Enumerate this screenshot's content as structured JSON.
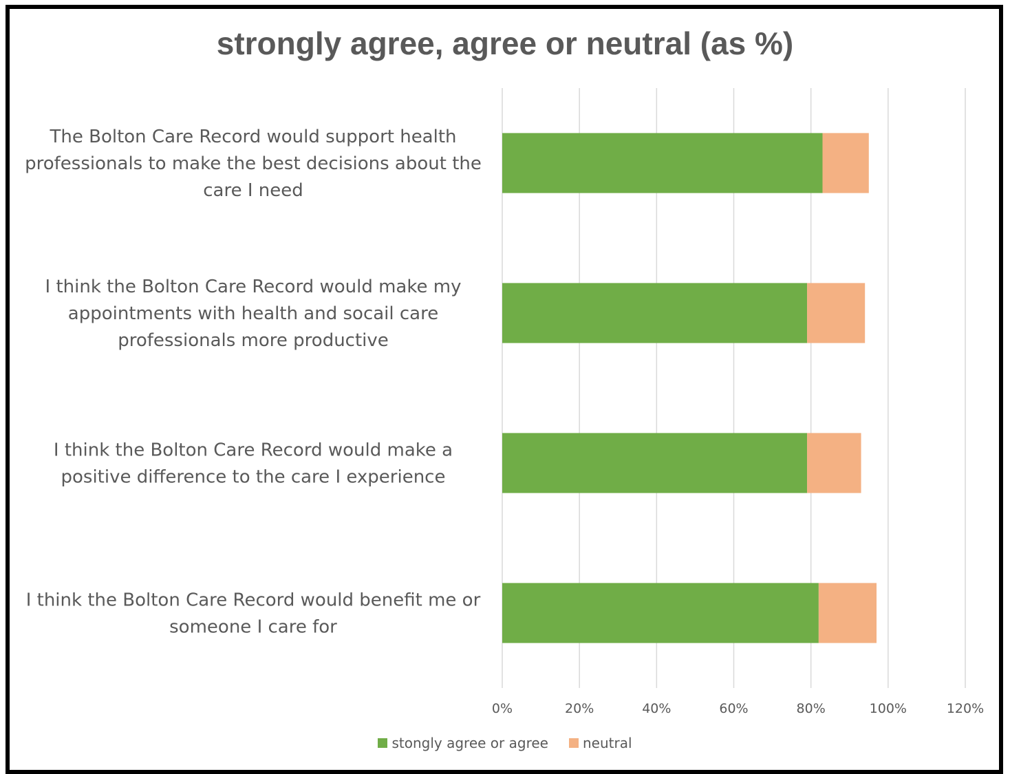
{
  "chart_data": {
    "type": "bar",
    "orientation": "horizontal",
    "stacked": true,
    "title": "strongly agree, agree or neutral (as %)",
    "categories": [
      "The Bolton Care Record would support health professionals to make the best decisions about the care I need",
      "I think the Bolton Care Record would make my appointments with health and socail care professionals more productive",
      "I think the Bolton Care Record would make a positive difference to the care I experience",
      "I think the Bolton Care Record would benefit me or someone I care for"
    ],
    "category_lines": [
      [
        "The Bolton Care Record would support health",
        "professionals to make the best decisions about the",
        "care I need"
      ],
      [
        "I think the Bolton Care Record would make my",
        "appointments with health and socail care",
        "professionals more productive"
      ],
      [
        "I think the Bolton Care Record would make a",
        "positive difference to the care I experience"
      ],
      [
        "I think the Bolton Care Record would benefit me or",
        "someone I care for"
      ]
    ],
    "series": [
      {
        "name": "stongly agree or agree",
        "color": "#70AD47",
        "values": [
          0.83,
          0.79,
          0.79,
          0.82
        ]
      },
      {
        "name": "neutral",
        "color": "#F4B183",
        "values": [
          0.12,
          0.15,
          0.14,
          0.15
        ]
      }
    ],
    "xlim": [
      0,
      1.2
    ],
    "xticks": [
      0,
      0.2,
      0.4,
      0.6,
      0.8,
      1.0,
      1.2
    ],
    "xtick_labels": [
      "0%",
      "20%",
      "40%",
      "60%",
      "80%",
      "100%",
      "120%"
    ],
    "grid": true,
    "legend_position": "bottom"
  }
}
